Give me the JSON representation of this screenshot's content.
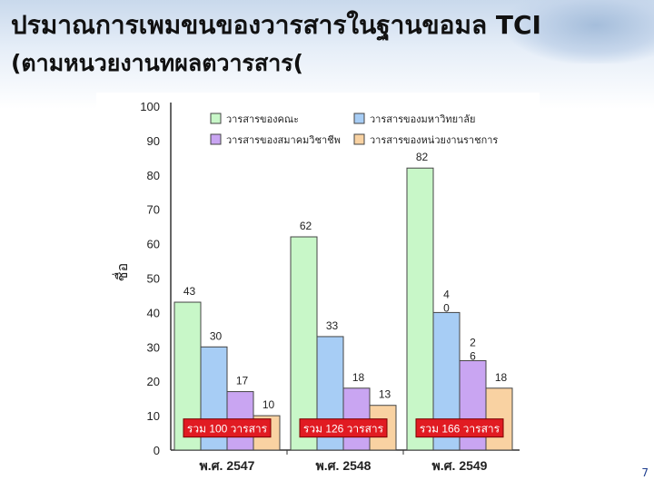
{
  "slide": {
    "title": "ปรมาณการเพมขนของวารสารในฐานขอมล TCI",
    "subtitle": "(ตามหนวยงานทผลตวารสาร(",
    "page_number": "7"
  },
  "chart_data": {
    "type": "bar",
    "title": "",
    "xlabel": "",
    "ylabel": "ชื่อ",
    "ylim": [
      0,
      100
    ],
    "yticks": [
      0,
      10,
      20,
      30,
      40,
      50,
      60,
      70,
      80,
      90,
      100
    ],
    "grid": false,
    "legend_position": "top",
    "categories": [
      "พ.ศ. 2547",
      "พ.ศ. 2548",
      "พ.ศ. 2549"
    ],
    "series": [
      {
        "name": "วารสารของคณะ",
        "color": "#c8f7c8",
        "values": [
          43,
          62,
          82
        ],
        "labels": [
          "43",
          "62",
          "82"
        ]
      },
      {
        "name": "วารสารของมหาวิทยาลัย",
        "color": "#a7cdf5",
        "values": [
          30,
          33,
          40
        ],
        "labels": [
          "30",
          "33",
          "4\n0"
        ]
      },
      {
        "name": "วารสารของสมาคมวิชาชีพ",
        "color": "#c9a5f2",
        "values": [
          17,
          18,
          26
        ],
        "labels": [
          "17",
          "18",
          "2\n6"
        ]
      },
      {
        "name": "วารสารของหน่วยงานราชการ",
        "color": "#f9d2a2",
        "values": [
          10,
          13,
          18
        ],
        "labels": [
          "10",
          "13",
          "18"
        ]
      }
    ],
    "totals": [
      "รวม 100 วารสาร",
      "รวม 126 วารสาร",
      "รวม 166 วารสาร"
    ],
    "colors": {
      "total_box": "#e11b22",
      "total_text": "#ffffff",
      "bar_border": "#444444"
    }
  }
}
